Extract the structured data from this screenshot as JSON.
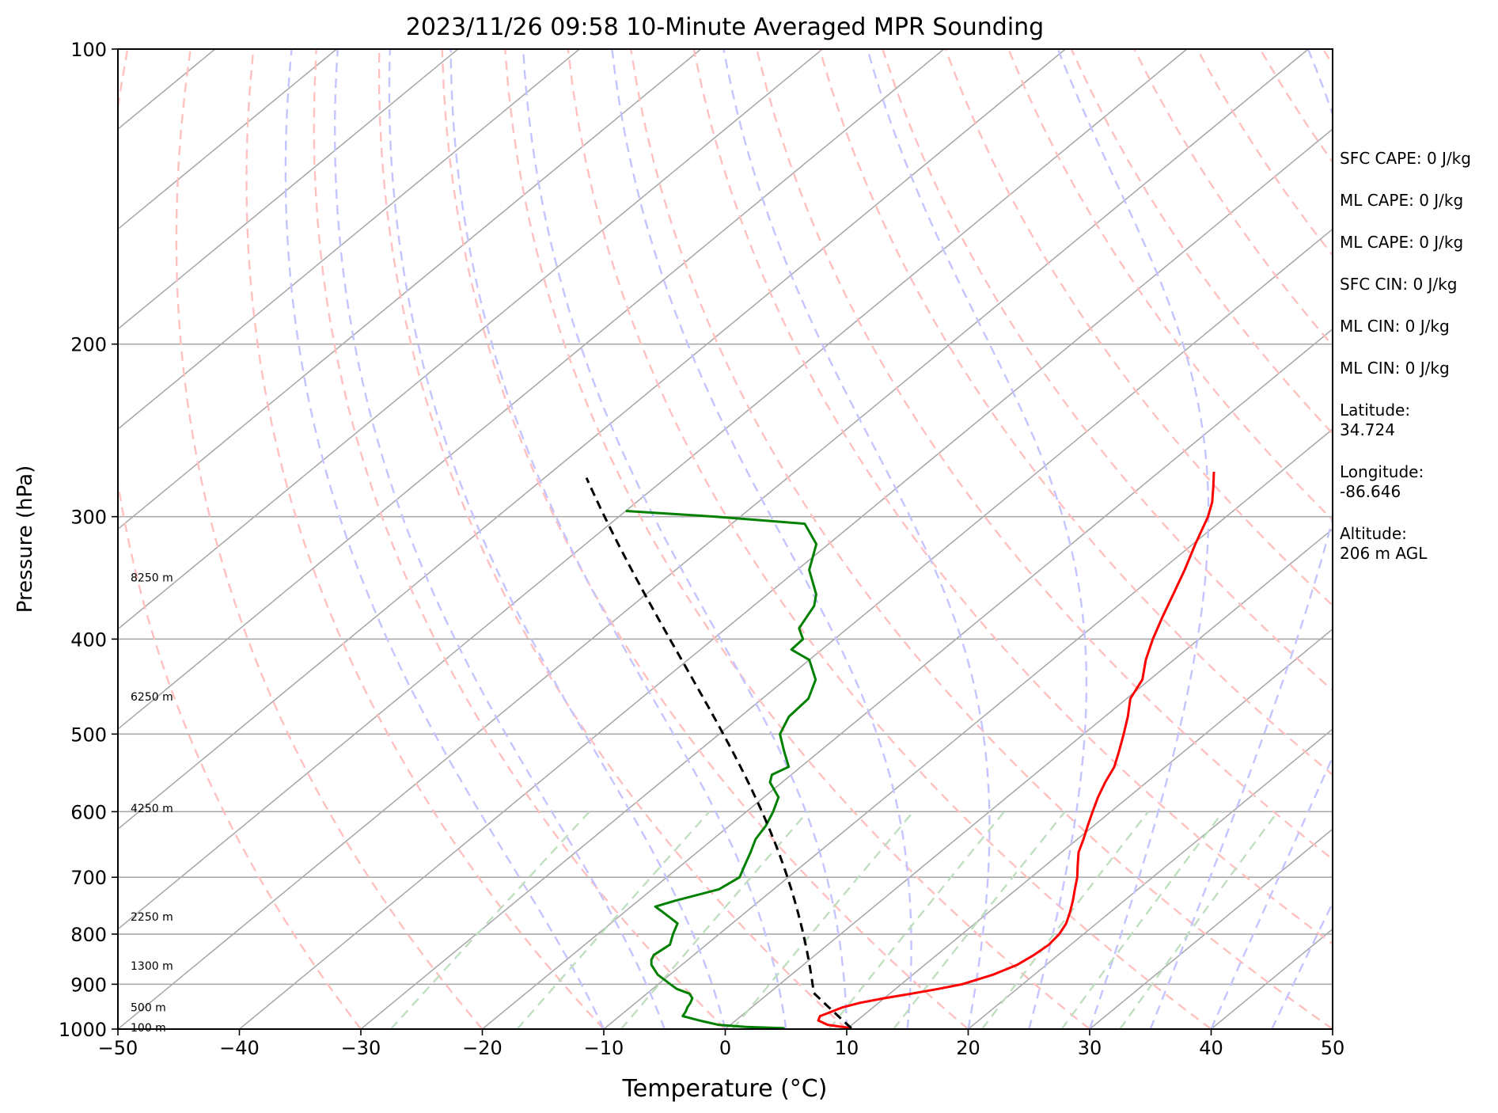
{
  "chart_data": {
    "type": "line",
    "subtype": "skew-t log-p diagram",
    "title": "2023/11/26 09:58 10-Minute Averaged MPR Sounding",
    "xlabel": "Temperature (°C)",
    "ylabel": "Pressure (hPa)",
    "xlim": [
      -50,
      50
    ],
    "ylim": [
      1000,
      100
    ],
    "y_scale": "log",
    "x_ticks": [
      "−50",
      "−40",
      "−30",
      "−20",
      "−10",
      "0",
      "10",
      "20",
      "30",
      "40",
      "50"
    ],
    "x_tick_values": [
      -50,
      -40,
      -30,
      -20,
      -10,
      0,
      10,
      20,
      30,
      40,
      50
    ],
    "y_ticks": [
      "100",
      "200",
      "300",
      "400",
      "500",
      "600",
      "700",
      "800",
      "900",
      "1000"
    ],
    "y_tick_values": [
      100,
      200,
      300,
      400,
      500,
      600,
      700,
      800,
      900,
      1000
    ],
    "skew_degC_per_decade": 98,
    "reference_lines": {
      "isotherms_degC": [
        -150,
        -140,
        -130,
        -120,
        -110,
        -100,
        -90,
        -80,
        -70,
        -60,
        -50,
        -40,
        -30,
        -20,
        -10,
        0,
        10,
        20,
        30,
        40,
        50
      ],
      "dry_adiabats_theta_degC": [
        -30,
        -20,
        -10,
        0,
        10,
        20,
        30,
        40,
        50,
        60,
        70,
        80,
        90,
        100,
        110,
        120,
        130,
        140,
        150,
        160,
        170,
        180,
        190,
        200
      ],
      "moist_adiabats_start_degC": [
        -10,
        -5,
        0,
        5,
        10,
        15,
        20,
        25,
        30,
        35,
        40,
        45
      ],
      "mixing_ratio_gkg": [
        0.4,
        1,
        2,
        4,
        7,
        10,
        16,
        24,
        32
      ],
      "mixing_ratio_top_hPa": 600
    },
    "series": [
      {
        "kind": "temperature",
        "color": "#ff0000",
        "points": [
          [
            998,
            10.3
          ],
          [
            990,
            8.0
          ],
          [
            980,
            6.8
          ],
          [
            970,
            6.5
          ],
          [
            960,
            7.0
          ],
          [
            950,
            7.5
          ],
          [
            940,
            8.5
          ],
          [
            930,
            10.0
          ],
          [
            920,
            11.8
          ],
          [
            910,
            13.5
          ],
          [
            900,
            15.0
          ],
          [
            880,
            16.6
          ],
          [
            860,
            17.6
          ],
          [
            840,
            18.0
          ],
          [
            820,
            18.2
          ],
          [
            800,
            18.0
          ],
          [
            780,
            17.5
          ],
          [
            760,
            16.7
          ],
          [
            740,
            15.8
          ],
          [
            720,
            14.8
          ],
          [
            700,
            13.8
          ],
          [
            680,
            12.6
          ],
          [
            660,
            11.4
          ],
          [
            640,
            10.5
          ],
          [
            620,
            9.5
          ],
          [
            600,
            8.5
          ],
          [
            580,
            7.5
          ],
          [
            560,
            6.6
          ],
          [
            540,
            5.8
          ],
          [
            520,
            4.6
          ],
          [
            500,
            3.3
          ],
          [
            480,
            1.9
          ],
          [
            460,
            0.3
          ],
          [
            440,
            -0.6
          ],
          [
            420,
            -2.3
          ],
          [
            400,
            -3.8
          ],
          [
            380,
            -5.2
          ],
          [
            360,
            -6.6
          ],
          [
            340,
            -8.1
          ],
          [
            320,
            -9.8
          ],
          [
            300,
            -11.5
          ],
          [
            290,
            -12.6
          ],
          [
            280,
            -14.0
          ],
          [
            270,
            -15.5
          ]
        ]
      },
      {
        "kind": "dewpoint",
        "color": "#008000",
        "points": [
          [
            998,
            4.8
          ],
          [
            995,
            1.5
          ],
          [
            990,
            -1.0
          ],
          [
            980,
            -3.0
          ],
          [
            970,
            -4.8
          ],
          [
            960,
            -5.0
          ],
          [
            950,
            -5.3
          ],
          [
            940,
            -5.5
          ],
          [
            930,
            -5.8
          ],
          [
            920,
            -6.5
          ],
          [
            910,
            -8.0
          ],
          [
            900,
            -9.0
          ],
          [
            880,
            -11.0
          ],
          [
            860,
            -12.5
          ],
          [
            850,
            -13.0
          ],
          [
            840,
            -13.3
          ],
          [
            820,
            -13.0
          ],
          [
            800,
            -13.8
          ],
          [
            780,
            -14.5
          ],
          [
            760,
            -16.8
          ],
          [
            750,
            -18.0
          ],
          [
            740,
            -17.0
          ],
          [
            720,
            -14.5
          ],
          [
            700,
            -14.0
          ],
          [
            680,
            -14.8
          ],
          [
            660,
            -15.6
          ],
          [
            640,
            -16.5
          ],
          [
            620,
            -17.0
          ],
          [
            600,
            -17.8
          ],
          [
            580,
            -18.8
          ],
          [
            560,
            -21.0
          ],
          [
            550,
            -21.6
          ],
          [
            540,
            -21.0
          ],
          [
            520,
            -23.0
          ],
          [
            500,
            -25.0
          ],
          [
            480,
            -26.0
          ],
          [
            460,
            -26.2
          ],
          [
            440,
            -27.5
          ],
          [
            420,
            -30.0
          ],
          [
            410,
            -32.5
          ],
          [
            400,
            -32.6
          ],
          [
            390,
            -34.0
          ],
          [
            370,
            -35.0
          ],
          [
            360,
            -36.0
          ],
          [
            340,
            -39.0
          ],
          [
            320,
            -41.0
          ],
          [
            305,
            -44.0
          ],
          [
            300,
            -52.0
          ],
          [
            296,
            -60.0
          ]
        ]
      },
      {
        "kind": "parcel",
        "color": "#000000",
        "dashed": true,
        "surface_hPa": 998,
        "surface_temp_degC": 10.3,
        "surface_dewpoint_degC": 4.8,
        "top_hPa": 275
      }
    ],
    "height_labels": [
      {
        "text": "100 m",
        "pressure_hPa": 996
      },
      {
        "text": "500 m",
        "pressure_hPa": 950
      },
      {
        "text": "1300 m",
        "pressure_hPa": 862
      },
      {
        "text": "2250 m",
        "pressure_hPa": 768
      },
      {
        "text": "4250 m",
        "pressure_hPa": 595
      },
      {
        "text": "6250 m",
        "pressure_hPa": 458
      },
      {
        "text": "8250 m",
        "pressure_hPa": 346
      }
    ],
    "colors": {
      "isotherm": "#aaaaaa",
      "isobar": "#aaaaaa",
      "dry_adiabat": "#ffc0c0",
      "moist_adiabat": "#c4c4ff",
      "mixing_ratio": "#c0dec0"
    }
  },
  "info": {
    "sfc_cape": "SFC CAPE: 0 J/kg",
    "ml_cape_1": "ML CAPE: 0 J/kg",
    "ml_cape_2": "ML CAPE: 0 J/kg",
    "sfc_cin": "SFC CIN: 0 J/kg",
    "ml_cin_1": "ML CIN: 0 J/kg",
    "ml_cin_2": "ML CIN: 0 J/kg",
    "latitude": "Latitude:\n34.724",
    "longitude": "Longitude:\n-86.646",
    "altitude": "Altitude:\n206 m AGL"
  }
}
